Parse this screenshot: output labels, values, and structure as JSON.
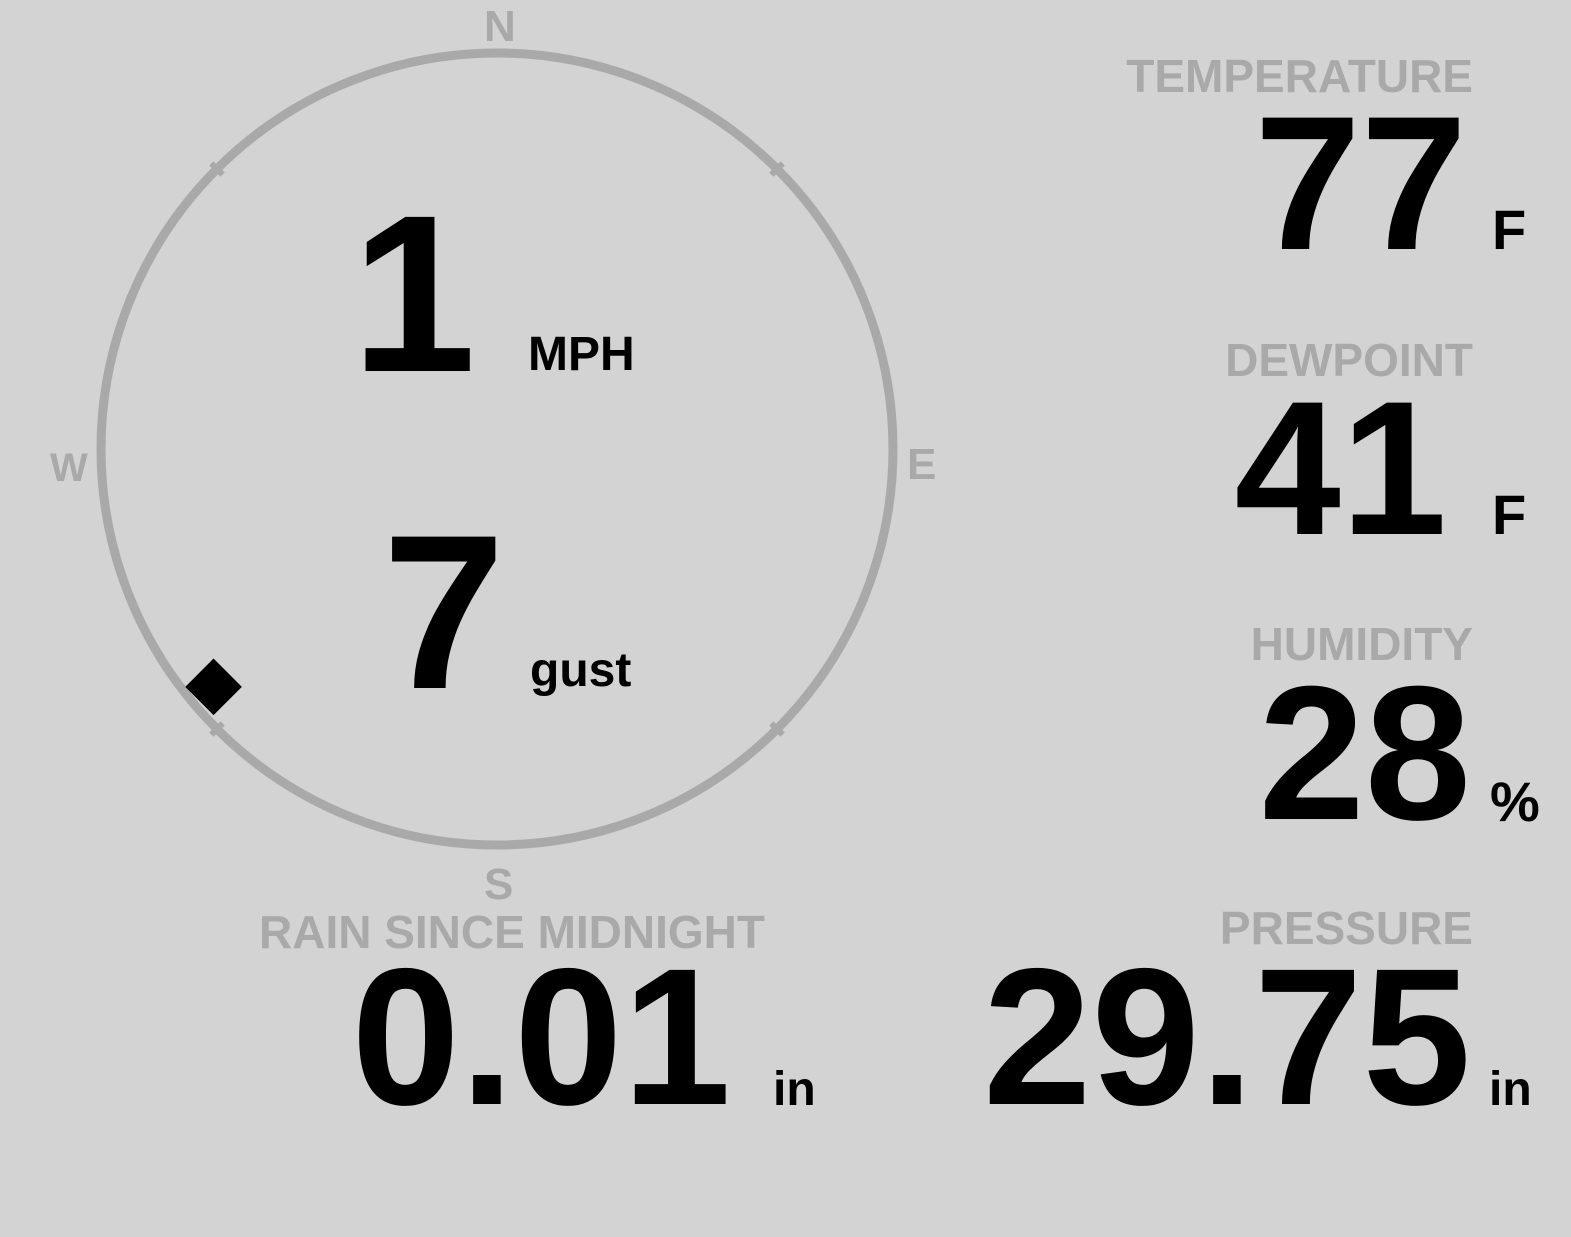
{
  "colors": {
    "background": "#d3d3d3",
    "label": "#a9a9a9",
    "value": "#000000"
  },
  "wind": {
    "compass": {
      "n": "N",
      "e": "E",
      "s": "S",
      "w": "W"
    },
    "speed": "1",
    "speed_unit": "MPH",
    "gust": "7",
    "gust_unit": "gust",
    "direction_deg": 230,
    "marker_icon": "diamond-icon"
  },
  "temperature": {
    "label": "TEMPERATURE",
    "value": "77",
    "unit": "F"
  },
  "dewpoint": {
    "label": "DEWPOINT",
    "value": "41",
    "unit": "F"
  },
  "humidity": {
    "label": "HUMIDITY",
    "value": "28",
    "unit": "%"
  },
  "rain": {
    "label": "RAIN SINCE MIDNIGHT",
    "value": "0.01",
    "unit": "in"
  },
  "pressure": {
    "label": "PRESSURE",
    "value": "29.75",
    "unit": "in"
  }
}
